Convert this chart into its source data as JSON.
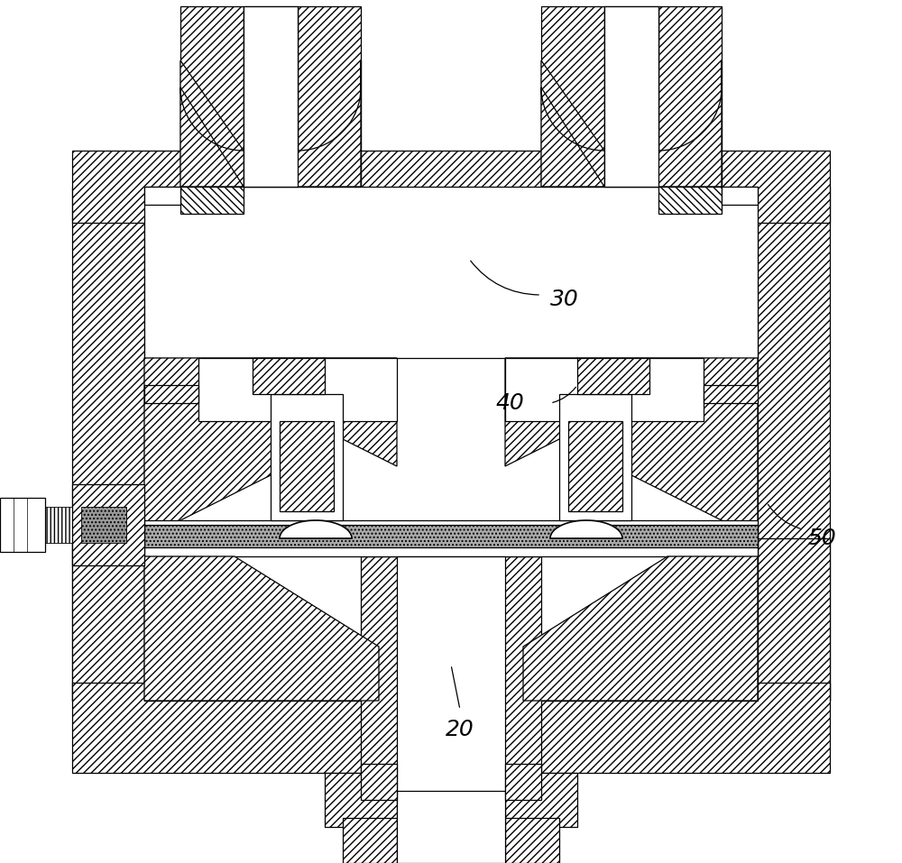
{
  "bg_color": "#ffffff",
  "lc": "#000000",
  "hatch": "////",
  "hatch2": "////",
  "dot_hatch": "....",
  "label_30": "30",
  "label_40": "40",
  "label_20": "20",
  "label_50": "50",
  "figsize": [
    10.0,
    9.57
  ],
  "dpi": 100
}
